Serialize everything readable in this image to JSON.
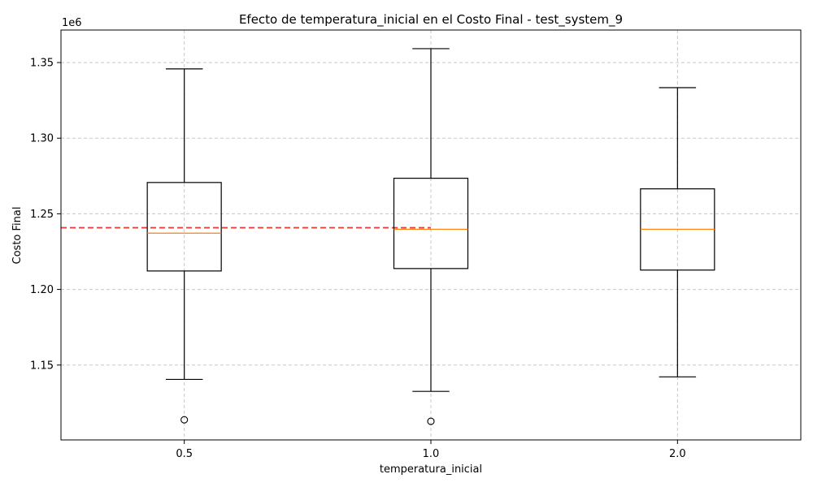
{
  "chart_data": {
    "type": "box",
    "title": "Efecto de temperatura_inicial en el Costo Final - test_system_9",
    "xlabel": "temperatura_inicial",
    "ylabel": "Costo Final",
    "y_offset_label": "1e6",
    "ylim": [
      1.1005,
      1.3715
    ],
    "y_ticks": [
      1.15,
      1.2,
      1.25,
      1.3,
      1.35
    ],
    "y_tick_labels": [
      "1.15",
      "1.20",
      "1.25",
      "1.30",
      "1.35"
    ],
    "categories": [
      "0.5",
      "1.0",
      "2.0"
    ],
    "boxes": [
      {
        "category": "0.5",
        "whisker_low": 1.1405,
        "q1": 1.2122,
        "median": 1.2372,
        "q3": 1.2707,
        "whisker_high": 1.3458,
        "outliers": [
          1.1138
        ]
      },
      {
        "category": "1.0",
        "whisker_low": 1.1326,
        "q1": 1.2138,
        "median": 1.2398,
        "q3": 1.2735,
        "whisker_high": 1.3592,
        "outliers": [
          1.1128
        ]
      },
      {
        "category": "2.0",
        "whisker_low": 1.1422,
        "q1": 1.2128,
        "median": 1.2398,
        "q3": 1.2665,
        "whisker_high": 1.3334,
        "outliers": []
      }
    ],
    "reference_line": {
      "y": 1.2408,
      "x_from": "0.5",
      "x_to": "1.0",
      "color": "#e8413b",
      "style": "dashed"
    },
    "grid": true,
    "colors": {
      "box": "#000000",
      "median": "#ff7f0e",
      "grid": "#c8c8c8"
    }
  }
}
